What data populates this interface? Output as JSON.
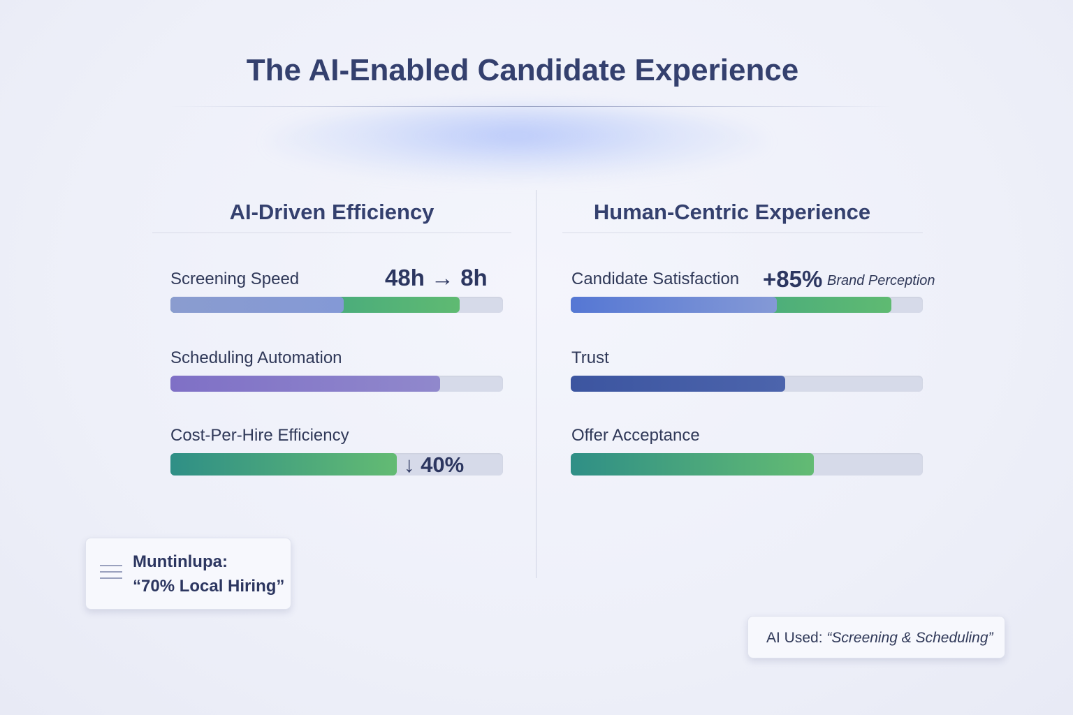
{
  "title": "The AI-Enabled Candidate Experience",
  "left": {
    "heading": "AI-Driven Efficiency",
    "items": [
      {
        "label": "Screening Speed",
        "metric": "48h → 8h",
        "fill_fractions": [
          0.52,
          0.87
        ],
        "colors": [
          "#8a9ccf",
          "#5fba72"
        ]
      },
      {
        "label": "Scheduling Automation",
        "fill_fractions": [
          0.81
        ],
        "colors": [
          "#7f70c6",
          "#9088cc"
        ]
      },
      {
        "label": "Cost-Per-Hire Efficiency",
        "metric": "↓ 40%",
        "fill_fractions": [
          0.68
        ],
        "colors": [
          "#2f8f86",
          "#63bb73"
        ]
      }
    ]
  },
  "right": {
    "heading": "Human-Centric Experience",
    "items": [
      {
        "label": "Candidate Satisfaction",
        "metric": "+85%",
        "metric_caption": "Brand Perception",
        "fill_fractions": [
          0.585,
          0.91
        ],
        "colors": [
          "#5577d4",
          "#5fba72"
        ]
      },
      {
        "label": "Trust",
        "fill_fractions": [
          0.61
        ],
        "colors": [
          "#3c55a0",
          "#4c64ac"
        ]
      },
      {
        "label": "Offer Acceptance",
        "fill_fractions": [
          0.69
        ],
        "colors": [
          "#2f8f86",
          "#63bb73"
        ]
      }
    ]
  },
  "notes": {
    "local": {
      "line1": "Muntinlupa:",
      "line2": "“70% Local Hiring”",
      "icon": "menu-icon"
    },
    "ai_used": {
      "prefix": "AI Used:",
      "value": "“Screening & Scheduling”"
    }
  }
}
